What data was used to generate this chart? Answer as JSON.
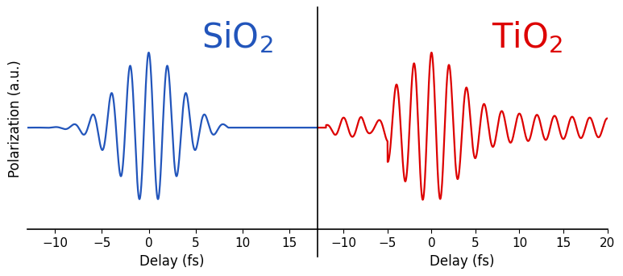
{
  "sio2_color": "#2255bb",
  "tio2_color": "#dd0000",
  "sio2_xlim": [
    -13,
    18
  ],
  "tio2_xlim": [
    -13,
    20
  ],
  "ylabel": "Polarization (a.u.)",
  "xlabel": "Delay (fs)",
  "sio2_xticks": [
    -10,
    -5,
    0,
    5,
    10,
    15
  ],
  "tio2_xticks": [
    -10,
    -5,
    0,
    5,
    10,
    15,
    20
  ],
  "label_fontsize": 12,
  "title_fontsize": 30,
  "sub_fontsize": 20,
  "bg_color": "#ffffff",
  "linewidth": 1.6
}
